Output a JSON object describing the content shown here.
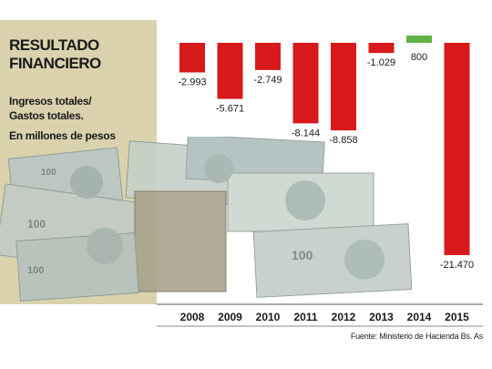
{
  "header": {
    "title_line1": "RESULTADO",
    "title_line2": "FINANCIERO",
    "subtitle_line1": "Ingresos totales/",
    "subtitle_line2": "Gastos totales.",
    "unit": "En millones de pesos"
  },
  "source": "Fuente:  Ministerio de Hacienda Bs. As",
  "colors": {
    "negative": "#d7191c",
    "positive": "#63b247",
    "panel": "#d9d2ad"
  },
  "chart_data": {
    "type": "bar",
    "categories": [
      "2008",
      "2009",
      "2010",
      "2011",
      "2012",
      "2013",
      "2014",
      "2015"
    ],
    "values": [
      -2993,
      -5671,
      -2749,
      -8144,
      -8858,
      -1029,
      800,
      -21470
    ],
    "labels": [
      "-2.993",
      "-5.671",
      "-2.749",
      "-8.144",
      "-8.858",
      "-1.029",
      "800",
      "-21.470"
    ],
    "title": "RESULTADO FINANCIERO",
    "ylabel": "",
    "grid": false
  }
}
